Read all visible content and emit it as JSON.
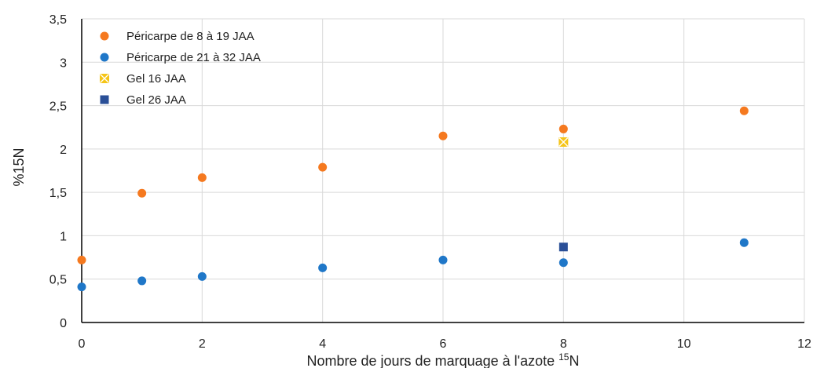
{
  "chart_data": {
    "type": "scatter",
    "xlabel": "Nombre de jours de marquage à l'azote ",
    "xlabel_sup": "15",
    "xlabel_suffix": "N",
    "ylabel": "%15N",
    "xlim": [
      0,
      12
    ],
    "ylim": [
      0,
      3.5
    ],
    "x_ticks": [
      0,
      2,
      4,
      6,
      8,
      10,
      12
    ],
    "x_tick_labels": [
      "0",
      "2",
      "4",
      "6",
      "8",
      "10",
      "12"
    ],
    "y_ticks": [
      0,
      0.5,
      1,
      1.5,
      2,
      2.5,
      3,
      3.5
    ],
    "y_tick_labels": [
      "0",
      "0,5",
      "1",
      "1,5",
      "2",
      "2,5",
      "3",
      "3,5"
    ],
    "grid": true,
    "legend_position": "top-left",
    "series": [
      {
        "name": "Péricarpe de 8 à 19 JAA",
        "marker": "circle",
        "color": "#F5791F",
        "x": [
          0,
          1,
          2,
          4,
          6,
          8,
          11
        ],
        "y": [
          0.72,
          1.49,
          1.67,
          1.79,
          2.15,
          2.23,
          2.44
        ]
      },
      {
        "name": "Péricarpe de 21 à 32 JAA",
        "marker": "circle",
        "color": "#1F77C8",
        "x": [
          0,
          1,
          2,
          4,
          6,
          8,
          11
        ],
        "y": [
          0.41,
          0.48,
          0.53,
          0.63,
          0.72,
          0.69,
          0.92
        ]
      },
      {
        "name": "Gel 16 JAA",
        "marker": "square-x",
        "color": "#F5C518",
        "x": [
          8
        ],
        "y": [
          2.08
        ]
      },
      {
        "name": "Gel 26 JAA",
        "marker": "square",
        "color": "#2A4F97",
        "x": [
          8
        ],
        "y": [
          0.87
        ]
      }
    ]
  }
}
